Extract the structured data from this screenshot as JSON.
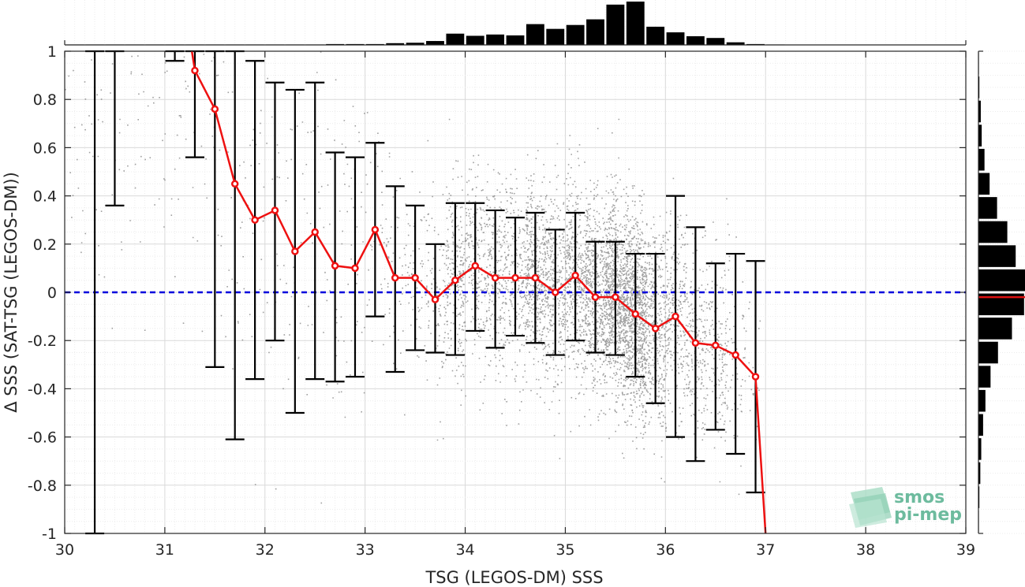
{
  "chart_data": {
    "type": "scatter",
    "xlabel": "TSG (LEGOS-DM) SSS",
    "ylabel": "Δ SSS (SAT-TSG (LEGOS-DM))",
    "xlim": [
      30,
      39
    ],
    "ylim": [
      -1,
      1
    ],
    "x_ticks": [
      "30",
      "31",
      "32",
      "33",
      "34",
      "35",
      "36",
      "37",
      "38",
      "39"
    ],
    "y_ticks": [
      "-1",
      "-0.8",
      "-0.6",
      "-0.4",
      "-0.2",
      "0",
      "0.2",
      "0.4",
      "0.6",
      "0.8",
      "1"
    ],
    "grid": true,
    "reference_line": {
      "y": 0,
      "style": "dashed",
      "color": "#0000dd"
    },
    "scatter_color": "#808080",
    "mean_line_color": "#ee1111",
    "errorbar_color": "#000000",
    "binned_stats": {
      "x": [
        30.3,
        30.5,
        31.1,
        31.3,
        31.5,
        31.7,
        31.9,
        32.1,
        32.3,
        32.5,
        32.7,
        32.9,
        33.1,
        33.3,
        33.5,
        33.7,
        33.9,
        34.1,
        34.3,
        34.5,
        34.7,
        34.9,
        35.1,
        35.3,
        35.5,
        35.7,
        35.9,
        36.1,
        36.3,
        36.5,
        36.7,
        36.9,
        37.0
      ],
      "mean": [
        null,
        null,
        null,
        0.92,
        0.76,
        0.45,
        0.3,
        0.34,
        0.17,
        0.25,
        0.11,
        0.1,
        0.26,
        0.06,
        0.06,
        -0.03,
        0.05,
        0.11,
        0.06,
        0.06,
        0.06,
        0.0,
        0.07,
        -0.02,
        -0.02,
        -0.09,
        -0.15,
        -0.1,
        -0.21,
        -0.22,
        -0.26,
        -0.35,
        -1.0
      ],
      "lower": [
        -1.0,
        0.36,
        0.96,
        0.56,
        -0.31,
        -0.61,
        -0.36,
        -0.2,
        -0.5,
        -0.36,
        -0.37,
        -0.35,
        -0.1,
        -0.33,
        -0.24,
        -0.25,
        -0.26,
        -0.16,
        -0.23,
        -0.18,
        -0.21,
        -0.26,
        -0.2,
        -0.25,
        -0.26,
        -0.35,
        -0.46,
        -0.6,
        -0.7,
        -0.57,
        -0.67,
        -0.83,
        null
      ],
      "upper": [
        1.0,
        1.0,
        1.0,
        1.0,
        1.0,
        1.0,
        0.96,
        0.87,
        0.84,
        0.87,
        0.58,
        0.56,
        0.62,
        0.44,
        0.36,
        0.2,
        0.37,
        0.37,
        0.34,
        0.31,
        0.33,
        0.26,
        0.33,
        0.21,
        0.21,
        0.16,
        0.16,
        0.4,
        0.27,
        0.12,
        0.16,
        0.13,
        null
      ]
    },
    "x_histogram": {
      "bin_centers": [
        30.1,
        30.3,
        30.5,
        30.7,
        30.9,
        31.1,
        31.3,
        31.5,
        31.7,
        31.9,
        32.1,
        32.3,
        32.5,
        32.7,
        32.9,
        33.1,
        33.3,
        33.5,
        33.7,
        33.9,
        34.1,
        34.3,
        34.5,
        34.7,
        34.9,
        35.1,
        35.3,
        35.5,
        35.7,
        35.9,
        36.1,
        36.3,
        36.5,
        36.7,
        36.9,
        37.1
      ],
      "relative_counts": [
        0.01,
        0.01,
        0.01,
        0.01,
        0.01,
        0.01,
        0.01,
        0.01,
        0.01,
        0.01,
        0.01,
        0.01,
        0.01,
        0.02,
        0.02,
        0.02,
        0.04,
        0.05,
        0.09,
        0.26,
        0.21,
        0.24,
        0.22,
        0.48,
        0.37,
        0.46,
        0.59,
        0.93,
        1.0,
        0.42,
        0.29,
        0.2,
        0.16,
        0.06,
        0.02,
        0.01
      ]
    },
    "y_histogram": {
      "bin_centers": [
        -0.95,
        -0.85,
        -0.75,
        -0.65,
        -0.55,
        -0.45,
        -0.35,
        -0.25,
        -0.15,
        -0.05,
        0.05,
        0.15,
        0.25,
        0.35,
        0.45,
        0.55,
        0.65,
        0.75,
        0.85,
        0.95
      ],
      "relative_counts": [
        0.01,
        0.02,
        0.04,
        0.06,
        0.1,
        0.15,
        0.26,
        0.42,
        0.72,
        0.98,
        1.0,
        0.8,
        0.62,
        0.4,
        0.24,
        0.13,
        0.07,
        0.05,
        0.02,
        0.01
      ],
      "median_line_y": -0.02
    }
  },
  "logo": {
    "line1": "smos",
    "line2": "pi-mep"
  }
}
